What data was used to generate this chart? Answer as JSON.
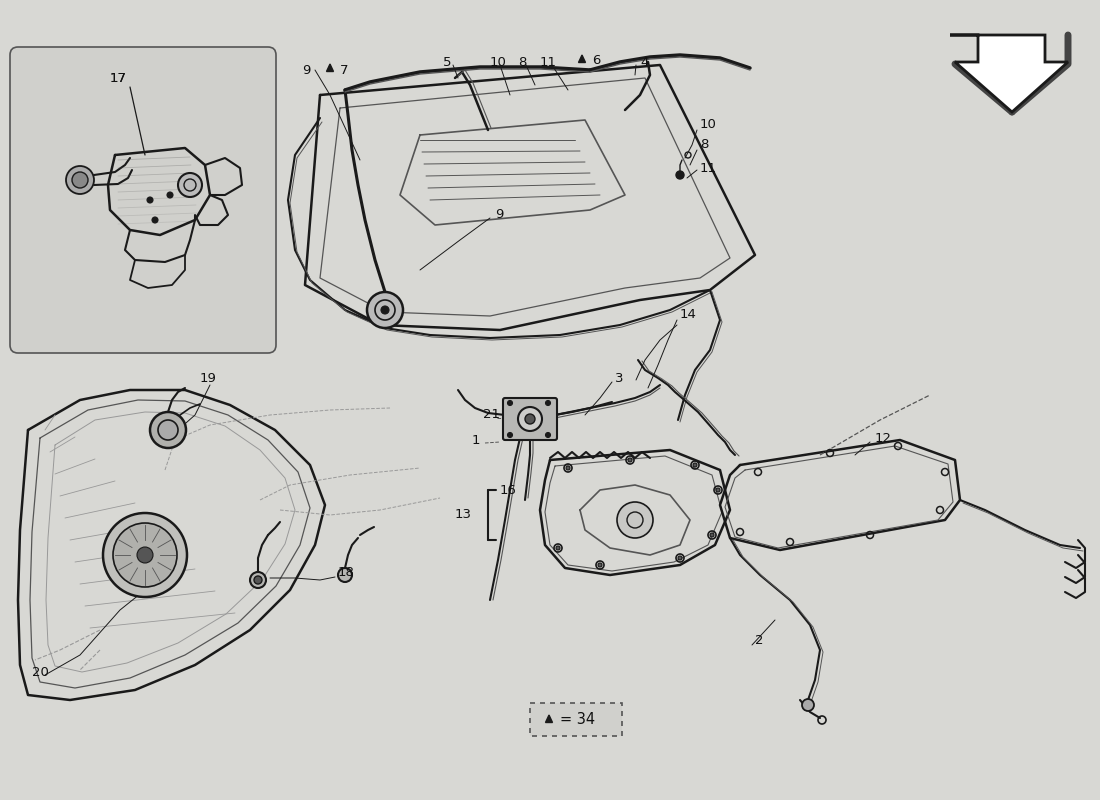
{
  "bg_color": "#d8d8d4",
  "line_color": "#1a1a1a",
  "mid_line": "#555555",
  "light_line": "#999999",
  "inset_bg": "#d0d0cc",
  "legend_text": "▲ = 34"
}
